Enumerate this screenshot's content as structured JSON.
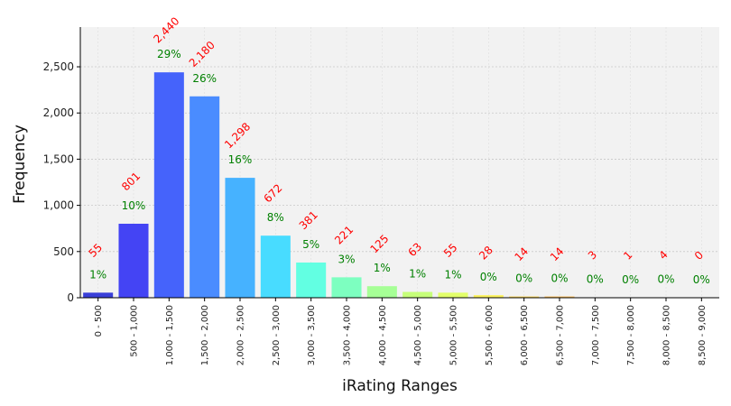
{
  "chart_data": {
    "type": "bar",
    "title": "",
    "xlabel": "iRating Ranges",
    "ylabel": "Frequency",
    "ylim": [
      0,
      2930
    ],
    "yticks": [
      0,
      500,
      1000,
      1500,
      2000,
      2500
    ],
    "ytick_labels": [
      "0",
      "500",
      "1,000",
      "1,500",
      "2,000",
      "2,500"
    ],
    "grid": true,
    "categories": [
      "0 - 500",
      "500 - 1,000",
      "1,000 - 1,500",
      "1,500 - 2,000",
      "2,000 - 2,500",
      "2,500 - 3,000",
      "3,000 - 3,500",
      "3,500 - 4,000",
      "4,000 - 4,500",
      "4,500 - 5,000",
      "5,000 - 5,500",
      "5,500 - 6,000",
      "6,000 - 6,500",
      "6,500 - 7,000",
      "7,000 - 7,500",
      "7,500 - 8,000",
      "8,000 - 8,500",
      "8,500 - 9,000"
    ],
    "values": [
      55,
      801,
      2440,
      2180,
      1298,
      672,
      381,
      221,
      125,
      63,
      55,
      28,
      14,
      14,
      3,
      1,
      4,
      0
    ],
    "count_labels": [
      "55",
      "801",
      "2,440",
      "2,180",
      "1,298",
      "672",
      "381",
      "221",
      "125",
      "63",
      "55",
      "28",
      "14",
      "14",
      "3",
      "1",
      "4",
      "0"
    ],
    "percent_labels": [
      "1%",
      "10%",
      "29%",
      "26%",
      "16%",
      "8%",
      "5%",
      "3%",
      "1%",
      "1%",
      "1%",
      "0%",
      "0%",
      "0%",
      "0%",
      "0%",
      "0%",
      "0%"
    ],
    "bar_colors": [
      "#3a3fd8",
      "#4444f4",
      "#4563fb",
      "#4a8cff",
      "#46b2ff",
      "#48dcff",
      "#62ffe2",
      "#7dffc0",
      "#a6ff96",
      "#c6ff7a",
      "#e2ff6a",
      "#fbf25c",
      "#ffd958",
      "#ffbf58",
      "#ff9c56",
      "#ff7c4e",
      "#ff5a46",
      "#ff3f3c"
    ],
    "count_label_color": "#ff0000",
    "percent_label_color": "#008000",
    "plot_background": "#f2f2f2"
  }
}
